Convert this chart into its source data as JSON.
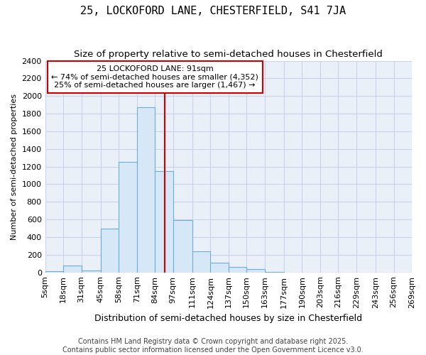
{
  "title": "25, LOCKOFORD LANE, CHESTERFIELD, S41 7JA",
  "subtitle": "Size of property relative to semi-detached houses in Chesterfield",
  "xlabel": "Distribution of semi-detached houses by size in Chesterfield",
  "ylabel": "Number of semi-detached properties",
  "bin_edges": [
    5,
    18,
    31,
    45,
    58,
    71,
    84,
    97,
    111,
    124,
    137,
    150,
    163,
    177,
    190,
    203,
    216,
    229,
    243,
    256,
    269
  ],
  "bar_heights": [
    15,
    80,
    20,
    500,
    1250,
    1870,
    1150,
    590,
    240,
    110,
    60,
    40,
    5,
    0,
    0,
    0,
    0,
    0,
    0,
    0
  ],
  "bar_color": "#d6e8f7",
  "bar_edge_color": "#6baed6",
  "bar_edge_width": 0.8,
  "red_line_x": 91,
  "red_line_color": "#cc0000",
  "annotation_text": "25 LOCKOFORD LANE: 91sqm\n← 74% of semi-detached houses are smaller (4,352)\n25% of semi-detached houses are larger (1,467) →",
  "annotation_box_color": "#ffffff",
  "annotation_box_edge": "#cc0000",
  "ylim": [
    0,
    2400
  ],
  "yticks": [
    0,
    200,
    400,
    600,
    800,
    1000,
    1200,
    1400,
    1600,
    1800,
    2000,
    2200,
    2400
  ],
  "grid_color": "#c8d4e8",
  "plot_bg_color": "#eaf0f8",
  "fig_bg_color": "#ffffff",
  "title_fontsize": 11,
  "subtitle_fontsize": 9.5,
  "ylabel_fontsize": 8,
  "xlabel_fontsize": 9,
  "ytick_fontsize": 8,
  "xtick_fontsize": 8,
  "footer_text": "Contains HM Land Registry data © Crown copyright and database right 2025.\nContains public sector information licensed under the Open Government Licence v3.0.",
  "footer_fontsize": 7
}
